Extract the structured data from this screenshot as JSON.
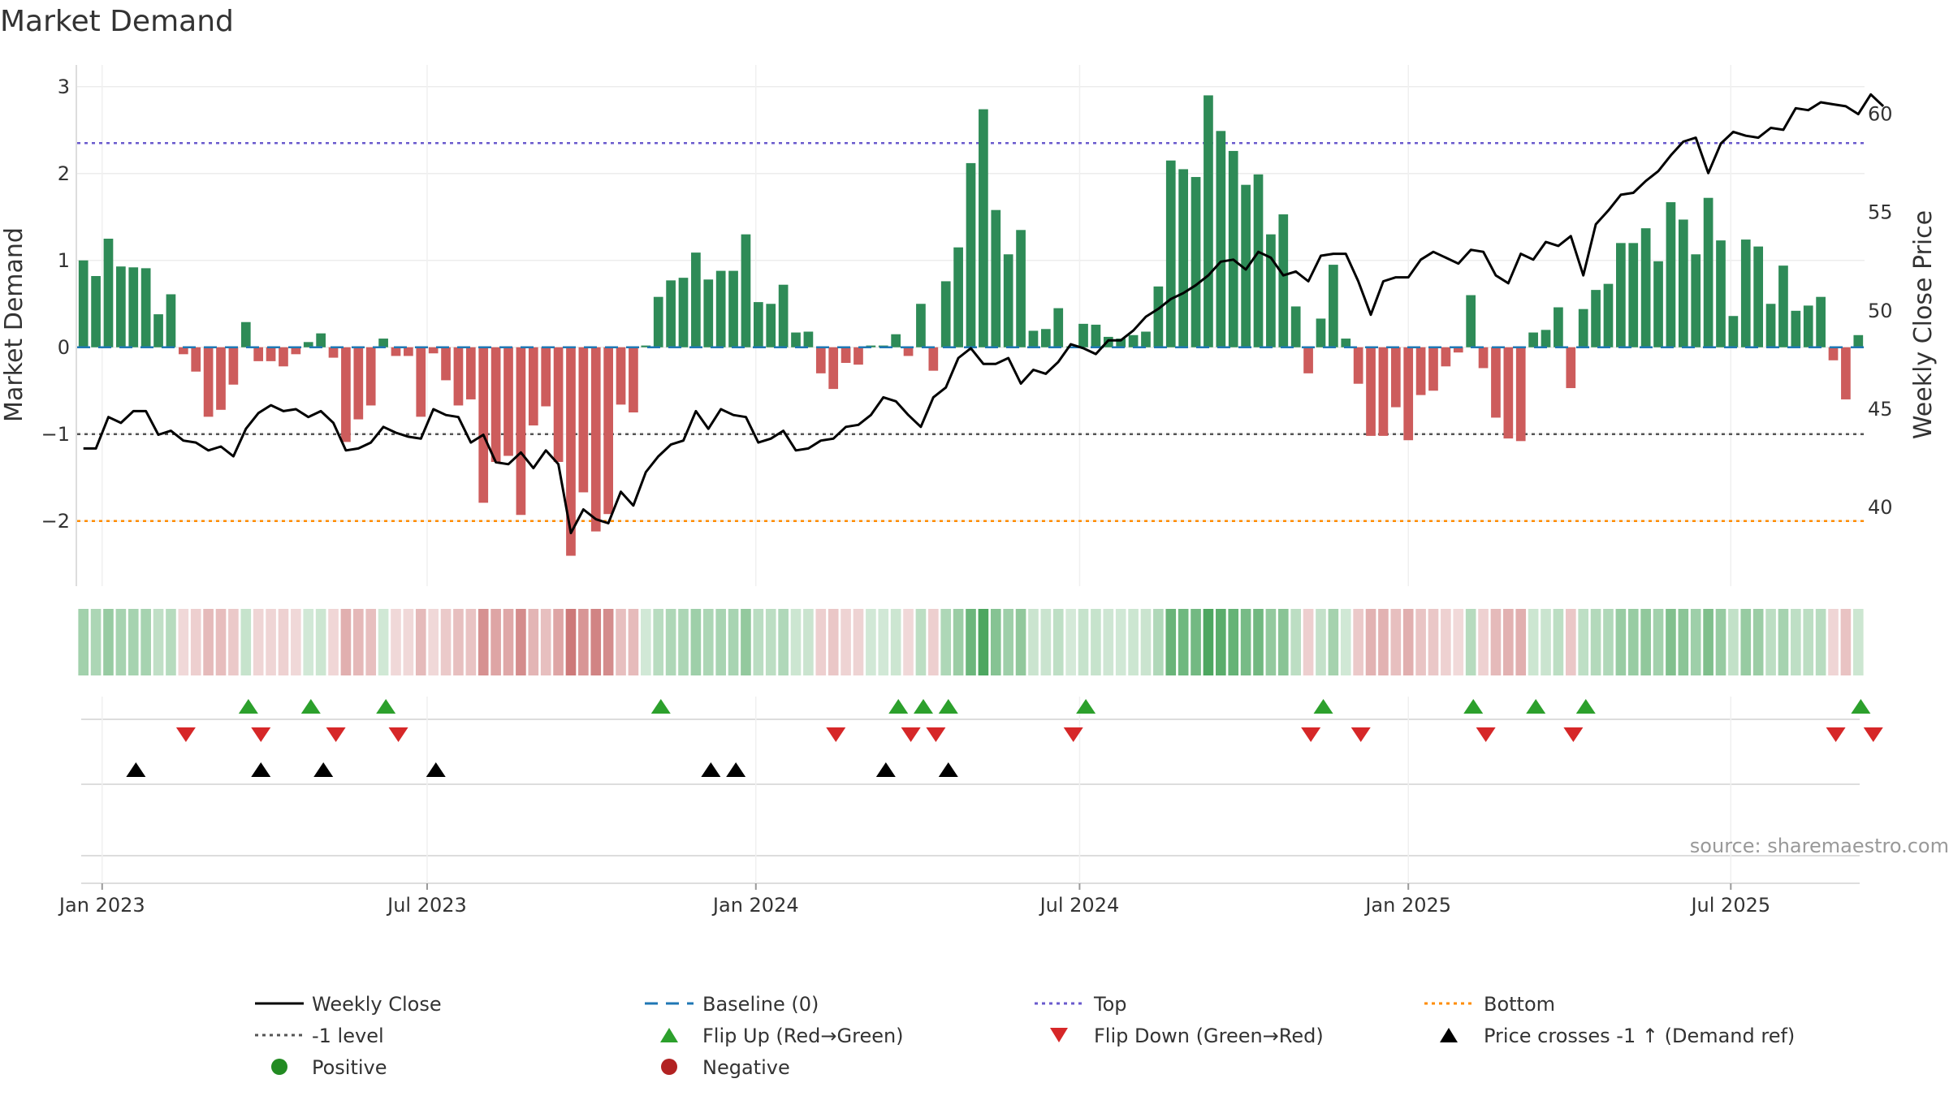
{
  "chart_data": {
    "type": "bar",
    "title": "Market Demand",
    "ylabel": "Market Demand",
    "y2label": "Weekly Close Price",
    "ylim": [
      -2.75,
      3.25
    ],
    "y2lim": [
      36.0,
      62.5
    ],
    "yticks": [
      "3",
      "2",
      "1",
      "0",
      "−1",
      "−2"
    ],
    "ytick_values": [
      3,
      2,
      1,
      0,
      -1,
      -2
    ],
    "y2ticks": [
      "60",
      "55",
      "50",
      "45",
      "40"
    ],
    "y2tick_values": [
      60,
      55,
      50,
      45,
      40
    ],
    "x_tick_labels": [
      "Jan 2023",
      "Jul 2023",
      "Jan 2024",
      "Jul 2024",
      "Jan 2025",
      "Jul 2025"
    ],
    "x_tick_weeks": [
      1.5,
      27.5,
      53.8,
      79.7,
      106,
      131.8
    ],
    "reference_lines": {
      "top": 2.35,
      "bottom": -2.0,
      "minus_one": -1.0,
      "baseline": 0
    },
    "colors": {
      "positive": "#2e8b57",
      "negative": "#cd5c5c",
      "close": "#000000",
      "top": "#6a5acd",
      "bottom": "#ff8c00",
      "minus_one": "#555555",
      "baseline": "#1f77b4",
      "flip_up": "#2ca02c",
      "flip_down": "#d62728",
      "cross": "#000000",
      "legend_positive": "#228b22",
      "legend_negative": "#b22222"
    },
    "demand": [
      1.0,
      0.82,
      1.25,
      0.93,
      0.92,
      0.91,
      0.38,
      0.61,
      -0.08,
      -0.28,
      -0.8,
      -0.72,
      -0.43,
      0.29,
      -0.16,
      -0.16,
      -0.22,
      -0.08,
      0.06,
      0.16,
      -0.12,
      -1.09,
      -0.83,
      -0.67,
      0.1,
      -0.1,
      -0.1,
      -0.8,
      -0.07,
      -0.38,
      -0.67,
      -0.6,
      -1.79,
      -1.32,
      -1.25,
      -1.93,
      -0.9,
      -0.68,
      -1.32,
      -2.4,
      -1.67,
      -2.12,
      -1.92,
      -0.66,
      -0.75,
      0.02,
      0.58,
      0.77,
      0.8,
      1.09,
      0.78,
      0.88,
      0.88,
      1.3,
      0.52,
      0.5,
      0.72,
      0.17,
      0.18,
      -0.3,
      -0.48,
      -0.18,
      -0.2,
      0.02,
      0.02,
      0.15,
      -0.1,
      0.5,
      -0.27,
      0.76,
      1.15,
      2.12,
      2.74,
      1.58,
      1.07,
      1.35,
      0.19,
      0.21,
      0.45,
      0.01,
      0.27,
      0.26,
      0.12,
      0.1,
      0.14,
      0.18,
      0.7,
      2.15,
      2.05,
      1.96,
      2.9,
      2.49,
      2.26,
      1.87,
      1.99,
      1.3,
      1.53,
      0.47,
      -0.3,
      0.33,
      0.95,
      0.1,
      -0.42,
      -1.02,
      -1.02,
      -0.69,
      -1.07,
      -0.55,
      -0.5,
      -0.22,
      -0.06,
      0.6,
      -0.24,
      -0.81,
      -1.05,
      -1.08,
      0.17,
      0.2,
      0.46,
      -0.47,
      0.44,
      0.66,
      0.73,
      1.2,
      1.2,
      1.37,
      0.99,
      1.67,
      1.47,
      1.07,
      1.72,
      1.23,
      0.36,
      1.24,
      1.16,
      0.5,
      0.94,
      0.42,
      0.48,
      0.58,
      -0.15,
      -0.6,
      0.14
    ],
    "close": [
      43.0,
      43.0,
      44.6,
      44.3,
      44.9,
      44.9,
      43.7,
      43.9,
      43.4,
      43.3,
      42.9,
      43.1,
      42.6,
      44.0,
      44.8,
      45.2,
      44.9,
      45.0,
      44.6,
      44.9,
      44.3,
      42.9,
      43.0,
      43.3,
      44.1,
      43.8,
      43.6,
      43.5,
      45.0,
      44.7,
      44.6,
      43.3,
      43.7,
      42.3,
      42.2,
      42.8,
      42.0,
      42.9,
      42.2,
      38.7,
      39.9,
      39.4,
      39.2,
      40.8,
      40.1,
      41.8,
      42.6,
      43.2,
      43.4,
      44.9,
      44.0,
      45.0,
      44.7,
      44.6,
      43.3,
      43.5,
      43.9,
      42.9,
      43.0,
      43.4,
      43.5,
      44.1,
      44.2,
      44.7,
      45.6,
      45.4,
      44.7,
      44.1,
      45.6,
      46.1,
      47.6,
      48.1,
      47.3,
      47.3,
      47.6,
      46.3,
      47.0,
      46.8,
      47.4,
      48.3,
      48.1,
      47.8,
      48.5,
      48.5,
      49.0,
      49.7,
      50.1,
      50.6,
      50.9,
      51.3,
      51.8,
      52.5,
      52.6,
      52.1,
      53.0,
      52.7,
      51.8,
      52.0,
      51.5,
      52.8,
      52.9,
      52.9,
      51.5,
      49.8,
      51.5,
      51.7,
      51.7,
      52.6,
      53.0,
      52.7,
      52.4,
      53.1,
      53.0,
      51.8,
      51.4,
      52.9,
      52.6,
      53.5,
      53.3,
      53.8,
      51.8,
      54.4,
      55.1,
      55.9,
      56.0,
      56.6,
      57.1,
      57.9,
      58.6,
      58.8,
      57.0,
      58.5,
      59.1,
      58.9,
      58.8,
      59.3,
      59.2,
      60.3,
      60.2,
      60.6,
      60.5,
      60.4,
      60.0,
      61.0,
      60.4
    ],
    "flip_up_weeks": [
      13.2,
      18.2,
      24.2,
      46.2,
      65.2,
      67.2,
      69.2,
      80.2,
      99.2,
      111.2,
      116.2,
      120.2,
      142.2
    ],
    "flip_down_weeks": [
      8.2,
      14.2,
      20.2,
      25.2,
      60.2,
      66.2,
      68.2,
      79.2,
      98.2,
      102.2,
      112.2,
      119.2,
      140.2,
      143.2
    ],
    "cross_weeks": [
      4.2,
      14.2,
      19.2,
      28.2,
      50.2,
      52.2,
      64.2,
      69.2
    ],
    "legend": [
      "Weekly Close",
      "Baseline (0)",
      "Top",
      "Bottom",
      "-1 level",
      "Flip Up (Red→Green)",
      "Flip Down (Green→Red)",
      "Price crosses -1 ↑ (Demand ref)",
      "Positive",
      "Negative"
    ],
    "source": "source: sharemaestro.com"
  }
}
